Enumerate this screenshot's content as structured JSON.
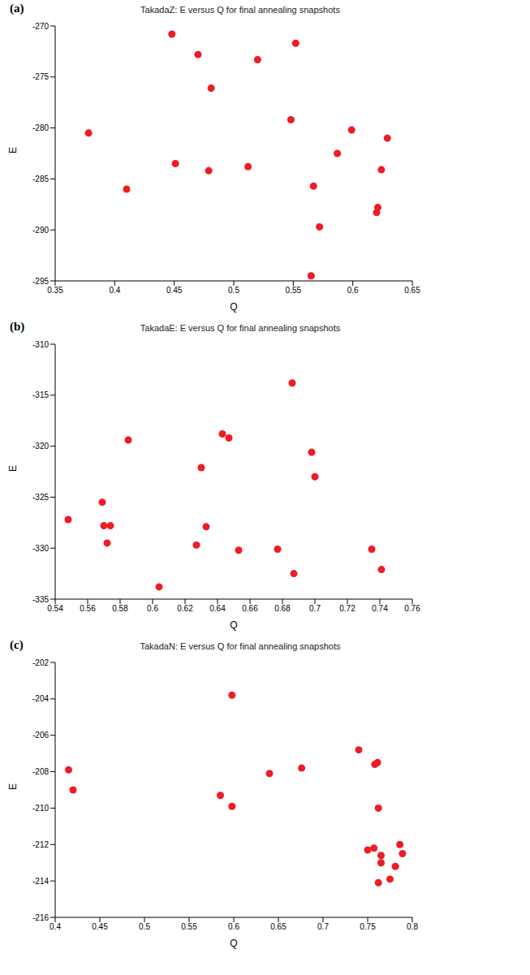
{
  "chart_data": [
    {
      "type": "scatter",
      "panel": "(a)",
      "title": "TakadaZ: E versus Q for final annealing snapshots",
      "x_label": "Q",
      "y_label": "E",
      "color": "#ee1c25",
      "marker": "circle",
      "grid": false,
      "xlim": [
        0.35,
        0.65
      ],
      "xticks": [
        0.35,
        0.4,
        0.45,
        0.5,
        0.55,
        0.6,
        0.65
      ],
      "ylim": [
        -295,
        -270
      ],
      "yticks": [
        -295,
        -290,
        -285,
        -280,
        -275,
        -270
      ],
      "x": [
        0.378,
        0.41,
        0.448,
        0.451,
        0.47,
        0.479,
        0.481,
        0.512,
        0.52,
        0.548,
        0.552,
        0.565,
        0.567,
        0.572,
        0.587,
        0.599,
        0.62,
        0.621,
        0.624,
        0.629
      ],
      "values": [
        -280.5,
        -286,
        -270.8,
        -283.5,
        -272.8,
        -284.2,
        -276.1,
        -283.8,
        -273.3,
        -279.2,
        -271.7,
        -294.5,
        -285.7,
        -289.7,
        -282.5,
        -280.2,
        -288.3,
        -287.8,
        -284.1,
        -281
      ]
    },
    {
      "type": "scatter",
      "panel": "(b)",
      "title": "TakadaE: E versus Q for final annealing snapshots",
      "x_label": "Q",
      "y_label": "E",
      "color": "#ee1c25",
      "marker": "circle",
      "grid": false,
      "xlim": [
        0.54,
        0.76
      ],
      "xticks": [
        0.54,
        0.56,
        0.58,
        0.6,
        0.62,
        0.64,
        0.66,
        0.68,
        0.7,
        0.72,
        0.74,
        0.76
      ],
      "ylim": [
        -335,
        -310
      ],
      "yticks": [
        -335,
        -330,
        -325,
        -320,
        -315,
        -310
      ],
      "x": [
        0.548,
        0.569,
        0.57,
        0.572,
        0.574,
        0.585,
        0.604,
        0.627,
        0.63,
        0.633,
        0.643,
        0.647,
        0.653,
        0.677,
        0.686,
        0.687,
        0.698,
        0.7,
        0.735,
        0.741
      ],
      "values": [
        -327.2,
        -325.5,
        -327.8,
        -329.5,
        -327.8,
        -319.4,
        -333.8,
        -329.7,
        -322.1,
        -327.9,
        -318.8,
        -319.2,
        -330.2,
        -330.1,
        -313.8,
        -332.5,
        -320.6,
        -323,
        -330.1,
        -332.1
      ]
    },
    {
      "type": "scatter",
      "panel": "(c)",
      "title": "TakadaN: E versus Q for final annealing snapshots",
      "x_label": "Q",
      "y_label": "E",
      "color": "#ee1c25",
      "marker": "circle",
      "grid": false,
      "xlim": [
        0.4,
        0.8
      ],
      "xticks": [
        0.4,
        0.45,
        0.5,
        0.55,
        0.6,
        0.65,
        0.7,
        0.75,
        0.8
      ],
      "ylim": [
        -216,
        -202
      ],
      "yticks": [
        -216,
        -214,
        -212,
        -210,
        -208,
        -206,
        -204,
        -202
      ],
      "x": [
        0.415,
        0.42,
        0.585,
        0.598,
        0.598,
        0.64,
        0.676,
        0.74,
        0.75,
        0.757,
        0.758,
        0.761,
        0.762,
        0.762,
        0.765,
        0.765,
        0.775,
        0.781,
        0.786,
        0.789
      ],
      "values": [
        -207.9,
        -209,
        -209.3,
        -203.8,
        -209.9,
        -208.1,
        -207.8,
        -206.8,
        -212.3,
        -212.2,
        -207.6,
        -207.5,
        -210,
        -214.1,
        -212.6,
        -213,
        -213.9,
        -213.2,
        -212,
        -212.5
      ]
    }
  ]
}
